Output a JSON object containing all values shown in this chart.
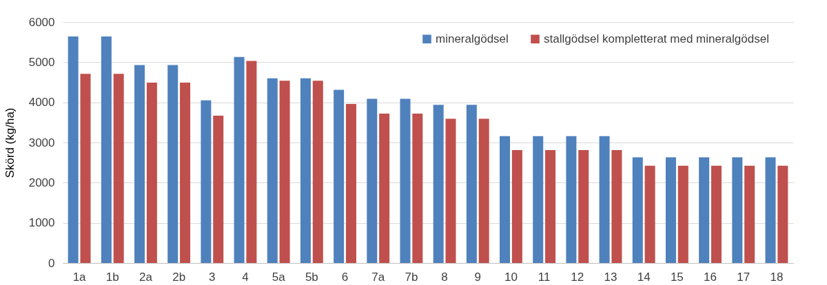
{
  "chart_data": {
    "type": "bar",
    "ylabel": "Skörd (kg/ha)",
    "categories": [
      "1a",
      "1b",
      "2a",
      "2b",
      "3",
      "4",
      "5a",
      "5b",
      "6",
      "7a",
      "7b",
      "8",
      "9",
      "10",
      "11",
      "12",
      "13",
      "14",
      "15",
      "16",
      "17",
      "18"
    ],
    "series": [
      {
        "name": "mineralgödsel",
        "color": "#4f81bd",
        "values": [
          5640,
          5640,
          4930,
          4930,
          4050,
          5130,
          4600,
          4600,
          4310,
          4090,
          4090,
          3940,
          3940,
          3160,
          3160,
          3160,
          3160,
          2630,
          2630,
          2630,
          2630,
          2630
        ]
      },
      {
        "name": "stallgödsel kompletterat med mineralgödsel",
        "color": "#c0504d",
        "values": [
          4710,
          4710,
          4490,
          4490,
          3670,
          5030,
          4540,
          4540,
          3960,
          3720,
          3720,
          3590,
          3590,
          2810,
          2810,
          2810,
          2810,
          2420,
          2420,
          2420,
          2420,
          2420
        ]
      }
    ],
    "ylim": [
      0,
      6000
    ],
    "yticks": [
      0,
      1000,
      2000,
      3000,
      4000,
      5000,
      6000
    ],
    "grid": "y",
    "legend": "top right"
  }
}
